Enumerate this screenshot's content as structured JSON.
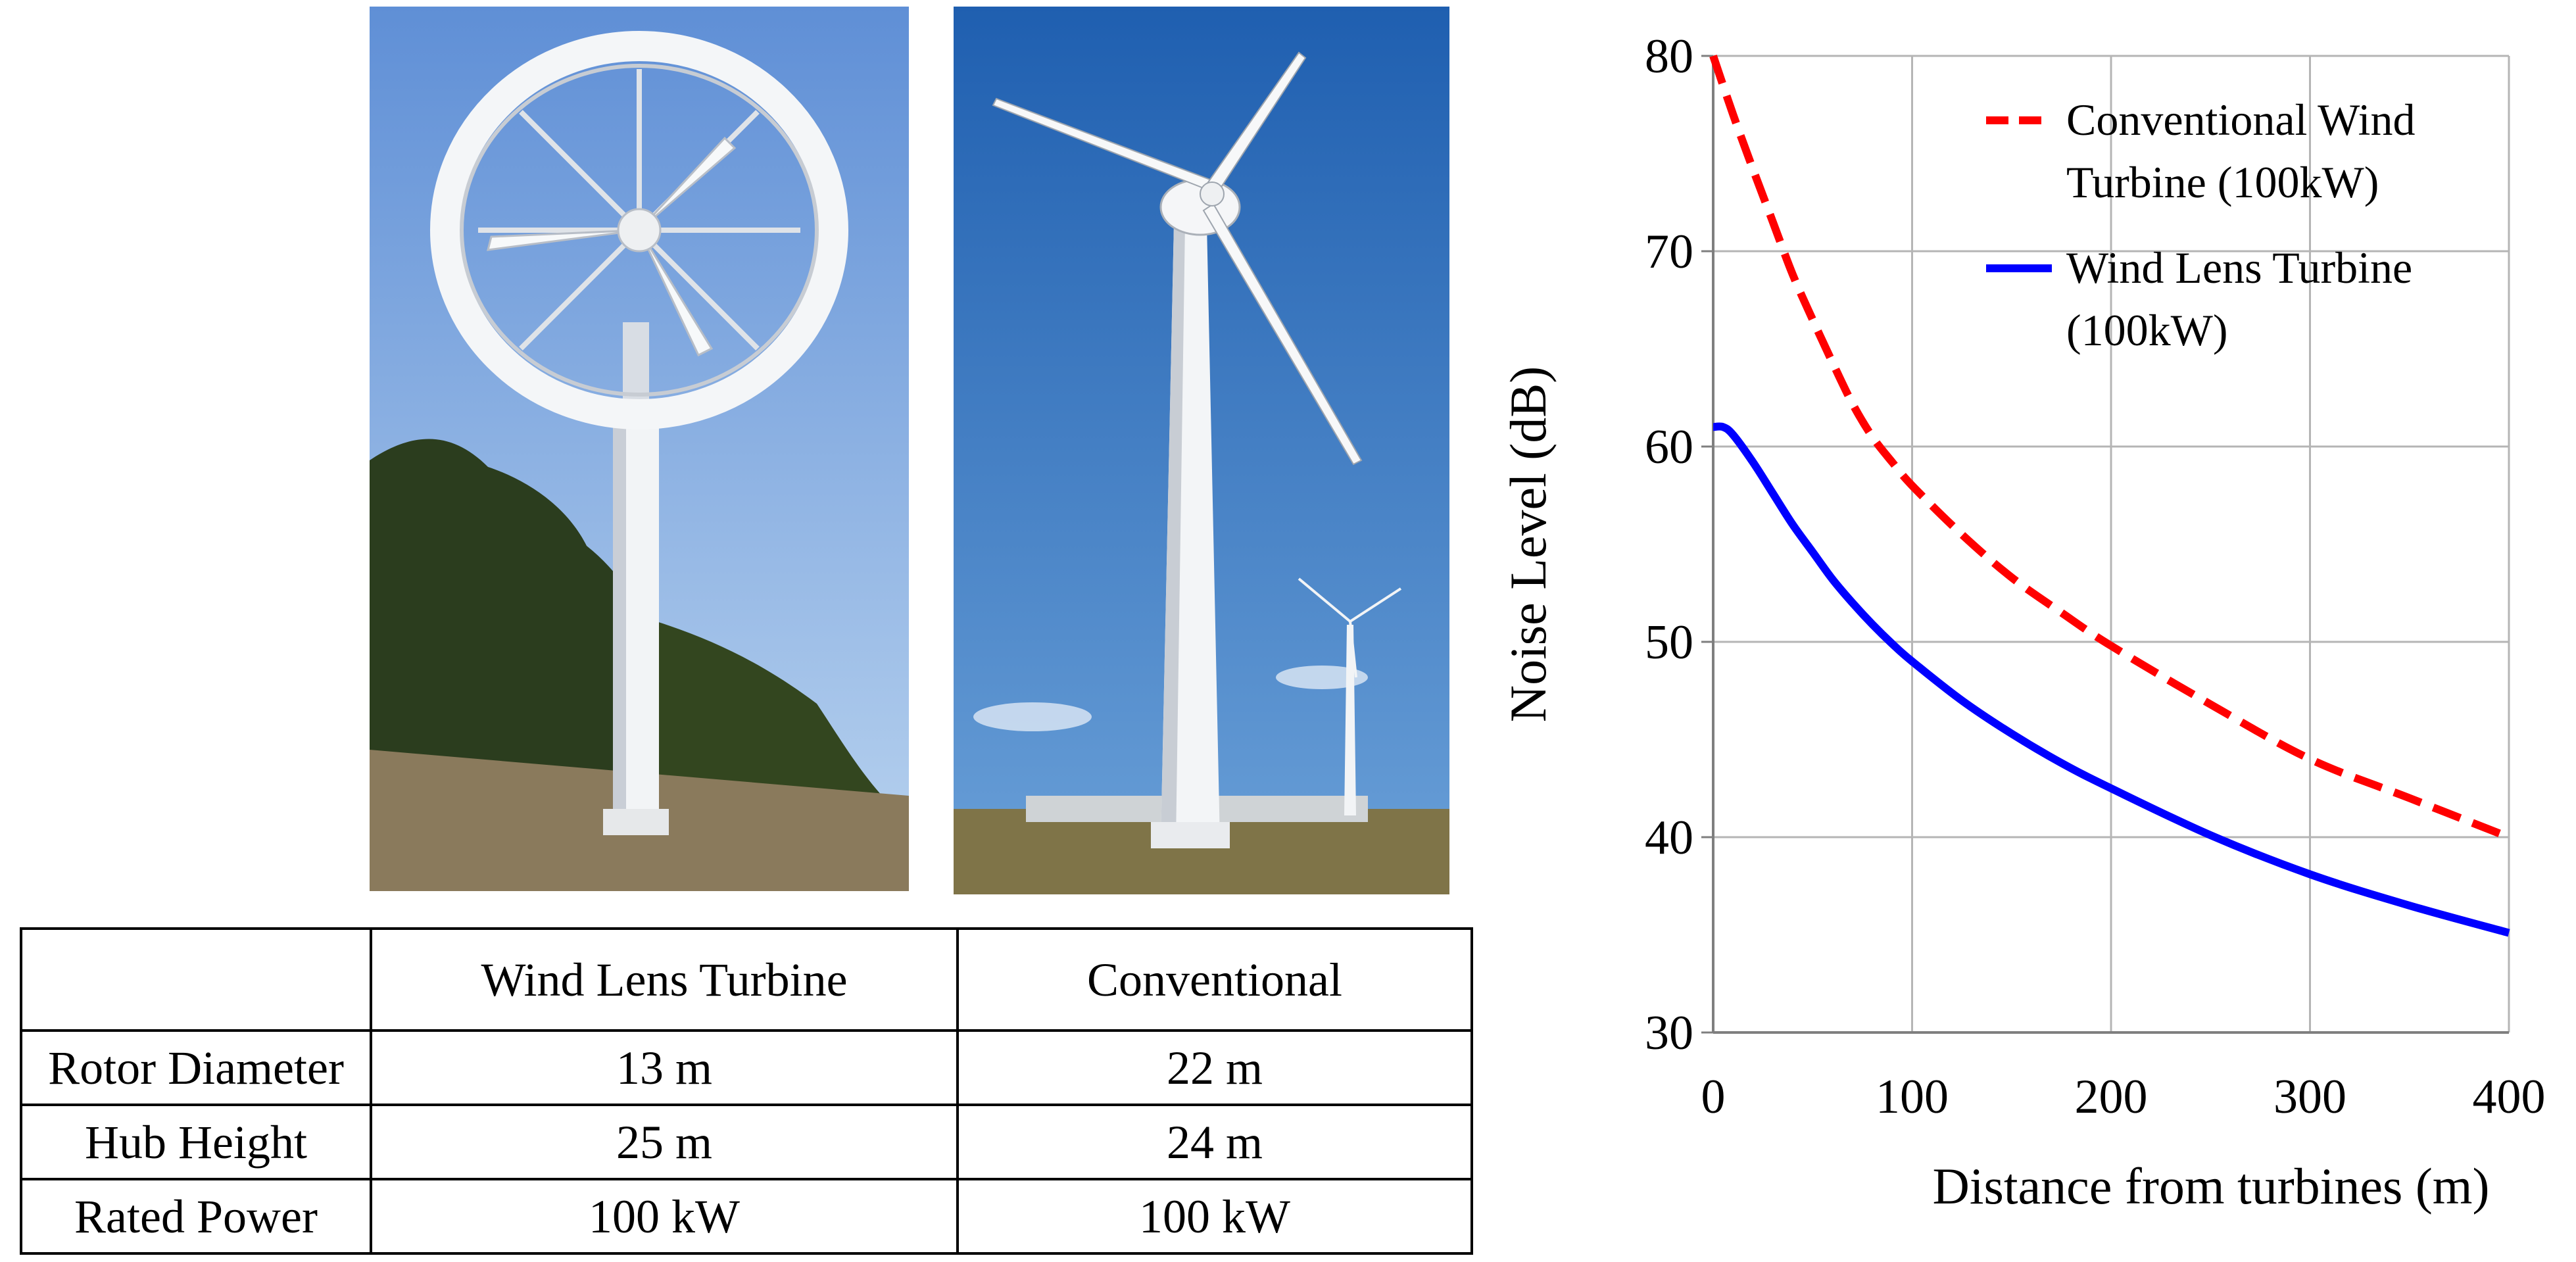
{
  "photos": {
    "lens": {
      "subject": "wind-lens-turbine-photo"
    },
    "conventional": {
      "subject": "conventional-turbine-photo"
    }
  },
  "table": {
    "header": [
      "",
      "Wind Lens Turbine",
      "Conventional"
    ],
    "rows": [
      {
        "label": "Rotor Diameter",
        "lens": "13 m",
        "conventional": "22 m"
      },
      {
        "label": "Hub Height",
        "lens": "25 m",
        "conventional": "24 m"
      },
      {
        "label": "Rated Power",
        "lens": "100 kW",
        "conventional": "100 kW"
      }
    ]
  },
  "chart_data": {
    "type": "line",
    "title": "",
    "xlabel": "Distance from turbines (m)",
    "ylabel": "Noise Level (dB)",
    "xlim": [
      0,
      400
    ],
    "ylim": [
      30,
      80
    ],
    "xticks": [
      0,
      100,
      200,
      300,
      400
    ],
    "yticks": [
      30,
      40,
      50,
      60,
      70,
      80
    ],
    "grid": true,
    "legend_position": "top-right",
    "series": [
      {
        "name": "Conventional Wind Turbine (100kW)",
        "legend_lines": [
          "Conventional Wind",
          "Turbine (100kW)"
        ],
        "color": "#ff0000",
        "style": "dashed",
        "x": [
          0,
          10,
          20,
          30,
          40,
          50,
          60,
          70,
          80,
          90,
          100,
          125,
          150,
          175,
          200,
          250,
          300,
          350,
          400
        ],
        "y": [
          80,
          77,
          74.2,
          71.5,
          68.8,
          66.5,
          64.3,
          62.2,
          60.5,
          59.2,
          58,
          55.5,
          53.3,
          51.5,
          49.8,
          46.8,
          44,
          42,
          40
        ]
      },
      {
        "name": "Wind Lens Turbine (100kW)",
        "legend_lines": [
          "Wind Lens Turbine",
          "(100kW)"
        ],
        "color": "#0000ff",
        "style": "solid",
        "x": [
          0,
          5,
          10,
          20,
          30,
          40,
          50,
          60,
          70,
          80,
          90,
          100,
          125,
          150,
          175,
          200,
          250,
          300,
          350,
          400
        ],
        "y": [
          61,
          61,
          60.6,
          59.2,
          57.6,
          56,
          54.6,
          53.2,
          52,
          50.9,
          49.9,
          49,
          47,
          45.3,
          43.8,
          42.5,
          40.1,
          38.1,
          36.5,
          35.1
        ]
      }
    ]
  }
}
